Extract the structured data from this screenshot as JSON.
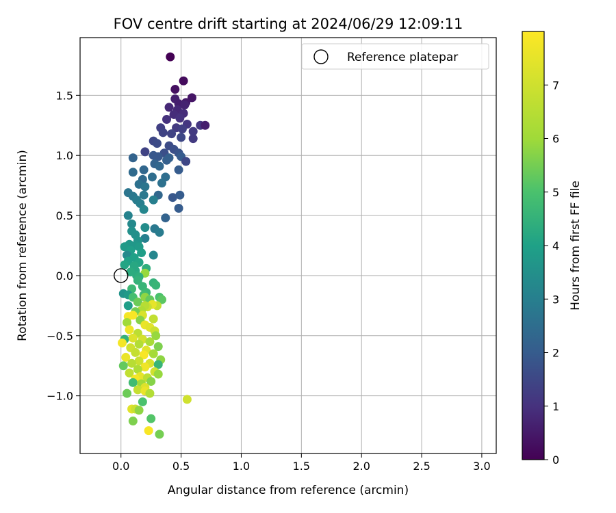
{
  "chart_data": {
    "type": "scatter",
    "title": "FOV centre drift starting at 2024/06/29 12:09:11",
    "xlabel": "Angular distance from reference (arcmin)",
    "ylabel": "Rotation from reference (arcmin)",
    "xlim": [
      -0.34,
      3.12
    ],
    "ylim": [
      -1.48,
      1.98
    ],
    "xticks": [
      0.0,
      0.5,
      1.0,
      1.5,
      2.0,
      2.5,
      3.0
    ],
    "xtick_labels": [
      "0.0",
      "0.5",
      "1.0",
      "1.5",
      "2.0",
      "2.5",
      "3.0"
    ],
    "yticks": [
      -1.0,
      -0.5,
      0.0,
      0.5,
      1.0,
      1.5
    ],
    "ytick_labels": [
      "−1.0",
      "−0.5",
      "0.0",
      "0.5",
      "1.0",
      "1.5"
    ],
    "grid": true,
    "legend": {
      "placement": "top-right",
      "entries": [
        {
          "label": "Reference platepar",
          "marker": "open-circle"
        }
      ]
    },
    "reference": {
      "x": 0.0,
      "y": 0.0
    },
    "colorbar": {
      "label": "Hours from first FF file",
      "colormap": "viridis",
      "range": [
        0,
        8
      ],
      "ticks": [
        0,
        1,
        2,
        3,
        4,
        5,
        6,
        7
      ],
      "tick_labels": [
        "0",
        "1",
        "2",
        "3",
        "4",
        "5",
        "6",
        "7"
      ]
    },
    "points": [
      [
        0.41,
        1.82,
        0.0
      ],
      [
        0.52,
        1.62,
        0.2
      ],
      [
        0.45,
        1.55,
        0.3
      ],
      [
        0.59,
        1.48,
        0.4
      ],
      [
        0.54,
        1.44,
        0.5
      ],
      [
        0.45,
        1.47,
        0.6
      ],
      [
        0.48,
        1.43,
        0.6
      ],
      [
        0.53,
        1.42,
        0.7
      ],
      [
        0.4,
        1.4,
        0.8
      ],
      [
        0.47,
        1.38,
        0.8
      ],
      [
        0.52,
        1.35,
        0.9
      ],
      [
        0.44,
        1.34,
        0.9
      ],
      [
        0.49,
        1.31,
        1.0
      ],
      [
        0.38,
        1.3,
        1.0
      ],
      [
        0.55,
        1.26,
        1.1
      ],
      [
        0.66,
        1.25,
        1.1
      ],
      [
        0.7,
        1.25,
        0.6
      ],
      [
        0.6,
        1.2,
        1.2
      ],
      [
        0.46,
        1.23,
        1.2
      ],
      [
        0.33,
        1.23,
        1.3
      ],
      [
        0.51,
        1.22,
        1.3
      ],
      [
        0.35,
        1.19,
        1.4
      ],
      [
        0.42,
        1.18,
        1.4
      ],
      [
        0.5,
        1.15,
        1.5
      ],
      [
        0.27,
        1.12,
        1.5
      ],
      [
        0.3,
        1.1,
        1.6
      ],
      [
        0.4,
        1.08,
        1.6
      ],
      [
        0.6,
        1.14,
        1.2
      ],
      [
        0.44,
        1.05,
        1.7
      ],
      [
        0.36,
        1.02,
        1.7
      ],
      [
        0.2,
        1.03,
        1.4
      ],
      [
        0.48,
        1.02,
        1.8
      ],
      [
        0.31,
        0.99,
        1.9
      ],
      [
        0.27,
        1.0,
        1.9
      ],
      [
        0.5,
        0.99,
        2.0
      ],
      [
        0.54,
        0.95,
        1.5
      ],
      [
        0.4,
        0.98,
        2.1
      ],
      [
        0.38,
        0.96,
        2.1
      ],
      [
        0.1,
        0.98,
        2.2
      ],
      [
        0.28,
        0.93,
        2.2
      ],
      [
        0.19,
        0.88,
        2.3
      ],
      [
        0.32,
        0.91,
        2.3
      ],
      [
        0.48,
        0.88,
        2.0
      ],
      [
        0.1,
        0.86,
        2.4
      ],
      [
        0.18,
        0.8,
        2.4
      ],
      [
        0.26,
        0.82,
        2.5
      ],
      [
        0.37,
        0.82,
        2.5
      ],
      [
        0.34,
        0.77,
        2.6
      ],
      [
        0.15,
        0.76,
        2.6
      ],
      [
        0.2,
        0.74,
        2.7
      ],
      [
        0.43,
        0.65,
        1.9
      ],
      [
        0.49,
        0.67,
        2.0
      ],
      [
        0.06,
        0.69,
        2.7
      ],
      [
        0.1,
        0.66,
        2.8
      ],
      [
        0.19,
        0.67,
        2.8
      ],
      [
        0.31,
        0.67,
        2.3
      ],
      [
        0.13,
        0.63,
        2.9
      ],
      [
        0.27,
        0.63,
        3.0
      ],
      [
        0.16,
        0.6,
        3.0
      ],
      [
        0.48,
        0.56,
        2.0
      ],
      [
        0.37,
        0.48,
        2.2
      ],
      [
        0.06,
        0.5,
        3.1
      ],
      [
        0.19,
        0.55,
        3.2
      ],
      [
        0.09,
        0.43,
        3.3
      ],
      [
        0.2,
        0.4,
        3.4
      ],
      [
        0.28,
        0.39,
        2.8
      ],
      [
        0.32,
        0.36,
        2.9
      ],
      [
        0.09,
        0.37,
        3.5
      ],
      [
        0.12,
        0.34,
        3.5
      ],
      [
        0.2,
        0.31,
        3.0
      ],
      [
        0.14,
        0.29,
        3.6
      ],
      [
        0.07,
        0.26,
        3.7
      ],
      [
        0.12,
        0.25,
        3.7
      ],
      [
        0.03,
        0.24,
        3.8
      ],
      [
        0.15,
        0.24,
        3.8
      ],
      [
        0.08,
        0.21,
        3.9
      ],
      [
        0.17,
        0.19,
        3.9
      ],
      [
        0.05,
        0.17,
        3.3
      ],
      [
        0.27,
        0.17,
        3.2
      ],
      [
        0.11,
        0.15,
        4.0
      ],
      [
        0.06,
        0.12,
        4.0
      ],
      [
        0.15,
        0.11,
        4.1
      ],
      [
        0.03,
        0.09,
        4.1
      ],
      [
        0.11,
        0.08,
        4.2
      ],
      [
        0.12,
        0.04,
        4.2
      ],
      [
        0.08,
        0.03,
        4.3
      ],
      [
        0.13,
        0.0,
        4.3
      ],
      [
        0.21,
        0.06,
        4.4
      ],
      [
        0.2,
        0.02,
        5.9
      ],
      [
        0.15,
        -0.01,
        4.4
      ],
      [
        0.14,
        -0.04,
        4.5
      ],
      [
        0.27,
        -0.06,
        4.5
      ],
      [
        0.29,
        -0.08,
        4.6
      ],
      [
        0.18,
        -0.09,
        4.6
      ],
      [
        0.09,
        -0.11,
        4.7
      ],
      [
        0.21,
        -0.14,
        4.7
      ],
      [
        0.02,
        -0.15,
        3.6
      ],
      [
        0.06,
        -0.16,
        3.8
      ],
      [
        0.19,
        -0.16,
        4.8
      ],
      [
        0.1,
        -0.18,
        4.9
      ],
      [
        0.32,
        -0.18,
        5.0
      ],
      [
        0.34,
        -0.2,
        5.2
      ],
      [
        0.2,
        -0.18,
        5.8
      ],
      [
        0.24,
        -0.2,
        5.3
      ],
      [
        0.14,
        -0.22,
        5.4
      ],
      [
        0.06,
        -0.25,
        3.9
      ],
      [
        0.3,
        -0.25,
        6.8
      ],
      [
        0.26,
        -0.24,
        7.5
      ],
      [
        0.22,
        -0.26,
        6.9
      ],
      [
        0.2,
        -0.25,
        6.5
      ],
      [
        0.17,
        -0.29,
        6.3
      ],
      [
        0.12,
        -0.3,
        5.5
      ],
      [
        0.06,
        -0.34,
        7.8
      ],
      [
        0.1,
        -0.33,
        7.9
      ],
      [
        0.18,
        -0.33,
        7.2
      ],
      [
        0.27,
        -0.36,
        6.7
      ],
      [
        0.16,
        -0.37,
        5.7
      ],
      [
        0.05,
        -0.39,
        6.0
      ],
      [
        0.2,
        -0.41,
        7.6
      ],
      [
        0.24,
        -0.43,
        7.4
      ],
      [
        0.28,
        -0.46,
        6.9
      ],
      [
        0.14,
        -0.48,
        6.6
      ],
      [
        0.07,
        -0.45,
        7.7
      ],
      [
        0.29,
        -0.5,
        5.9
      ],
      [
        0.03,
        -0.53,
        4.5
      ],
      [
        0.1,
        -0.52,
        7.3
      ],
      [
        0.18,
        -0.53,
        7.1
      ],
      [
        0.24,
        -0.55,
        6.2
      ],
      [
        0.01,
        -0.56,
        7.8
      ],
      [
        0.15,
        -0.57,
        6.4
      ],
      [
        0.31,
        -0.59,
        5.6
      ],
      [
        0.08,
        -0.6,
        7.0
      ],
      [
        0.21,
        -0.62,
        7.4
      ],
      [
        0.12,
        -0.64,
        6.8
      ],
      [
        0.27,
        -0.65,
        6.1
      ],
      [
        0.19,
        -0.66,
        7.9
      ],
      [
        0.04,
        -0.68,
        7.6
      ],
      [
        0.33,
        -0.7,
        5.8
      ],
      [
        0.15,
        -0.71,
        6.9
      ],
      [
        0.24,
        -0.73,
        7.2
      ],
      [
        0.09,
        -0.73,
        6.5
      ],
      [
        0.31,
        -0.74,
        4.6
      ],
      [
        0.02,
        -0.75,
        5.3
      ],
      [
        0.2,
        -0.76,
        7.7
      ],
      [
        0.14,
        -0.78,
        6.3
      ],
      [
        0.28,
        -0.8,
        7.0
      ],
      [
        0.07,
        -0.81,
        6.7
      ],
      [
        0.31,
        -0.82,
        5.9
      ],
      [
        0.16,
        -0.84,
        7.5
      ],
      [
        0.22,
        -0.85,
        6.6
      ],
      [
        0.12,
        -0.86,
        7.8
      ],
      [
        0.25,
        -0.88,
        5.7
      ],
      [
        0.1,
        -0.89,
        4.8
      ],
      [
        0.17,
        -0.9,
        6.0
      ],
      [
        0.2,
        -0.93,
        7.3
      ],
      [
        0.14,
        -0.95,
        6.8
      ],
      [
        0.2,
        -0.96,
        7.6
      ],
      [
        0.24,
        -0.98,
        6.4
      ],
      [
        0.05,
        -0.98,
        5.4
      ],
      [
        0.18,
        -1.05,
        5.0
      ],
      [
        0.55,
        -1.03,
        7.0
      ],
      [
        0.09,
        -1.11,
        7.4
      ],
      [
        0.12,
        -1.11,
        6.9
      ],
      [
        0.15,
        -1.12,
        5.8
      ],
      [
        0.25,
        -1.19,
        5.1
      ],
      [
        0.1,
        -1.21,
        5.6
      ],
      [
        0.23,
        -1.29,
        7.9
      ],
      [
        0.32,
        -1.32,
        5.5
      ]
    ]
  }
}
